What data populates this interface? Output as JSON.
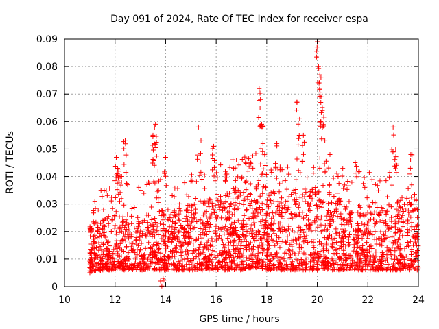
{
  "chart_data": {
    "type": "scatter",
    "title": "Day 091 of 2024, Rate Of TEC Index for receiver espa",
    "xlabel": "GPS time / hours",
    "ylabel": "ROTI / TECUs",
    "xlim": [
      10,
      24
    ],
    "ylim": [
      0,
      0.09
    ],
    "xticks": [
      10,
      12,
      14,
      16,
      18,
      20,
      22,
      24
    ],
    "xtick_labels": [
      "10",
      "12",
      "14",
      "16",
      "18",
      "20",
      "22",
      "24"
    ],
    "yticks": [
      0,
      0.01,
      0.02,
      0.03,
      0.04,
      0.05,
      0.06,
      0.07,
      0.08,
      0.09
    ],
    "ytick_labels": [
      "0",
      "0.01",
      "0.02",
      "0.03",
      "0.04",
      "0.05",
      "0.06",
      "0.07",
      "0.08",
      "0.09"
    ],
    "grid": true,
    "marker": "+",
    "series_color": "#ff0000",
    "x_data_start": 11.0,
    "x_data_end": 24.0,
    "envelope": {
      "x": [
        11.0,
        11.5,
        12.0,
        12.5,
        13.0,
        13.5,
        14.0,
        14.5,
        15.0,
        15.5,
        16.0,
        16.5,
        17.0,
        17.5,
        18.0,
        18.5,
        19.0,
        19.5,
        20.0,
        20.5,
        21.0,
        21.5,
        22.0,
        22.5,
        23.0,
        23.5,
        24.0
      ],
      "typical_low": [
        0.005,
        0.006,
        0.006,
        0.006,
        0.006,
        0.006,
        0.006,
        0.006,
        0.006,
        0.006,
        0.006,
        0.006,
        0.006,
        0.007,
        0.006,
        0.006,
        0.006,
        0.006,
        0.006,
        0.006,
        0.006,
        0.006,
        0.006,
        0.006,
        0.006,
        0.006,
        0.006
      ],
      "typical_high": [
        0.022,
        0.025,
        0.027,
        0.026,
        0.025,
        0.028,
        0.028,
        0.028,
        0.03,
        0.032,
        0.033,
        0.034,
        0.036,
        0.038,
        0.036,
        0.035,
        0.036,
        0.036,
        0.035,
        0.034,
        0.032,
        0.03,
        0.03,
        0.029,
        0.031,
        0.032,
        0.034
      ]
    },
    "spikes": [
      {
        "x": 11.2,
        "y": 0.031
      },
      {
        "x": 12.05,
        "y": 0.047
      },
      {
        "x": 12.1,
        "y": 0.043
      },
      {
        "x": 12.2,
        "y": 0.04
      },
      {
        "x": 12.4,
        "y": 0.053
      },
      {
        "x": 13.5,
        "y": 0.055
      },
      {
        "x": 13.6,
        "y": 0.059
      },
      {
        "x": 13.55,
        "y": 0.052
      },
      {
        "x": 13.7,
        "y": 0.042
      },
      {
        "x": 14.0,
        "y": 0.047
      },
      {
        "x": 15.3,
        "y": 0.058
      },
      {
        "x": 15.4,
        "y": 0.053
      },
      {
        "x": 15.9,
        "y": 0.051
      },
      {
        "x": 16.8,
        "y": 0.046
      },
      {
        "x": 17.7,
        "y": 0.072
      },
      {
        "x": 17.75,
        "y": 0.068
      },
      {
        "x": 17.8,
        "y": 0.059
      },
      {
        "x": 17.85,
        "y": 0.052
      },
      {
        "x": 18.4,
        "y": 0.052
      },
      {
        "x": 19.2,
        "y": 0.067
      },
      {
        "x": 19.3,
        "y": 0.061
      },
      {
        "x": 19.45,
        "y": 0.055
      },
      {
        "x": 20.0,
        "y": 0.089
      },
      {
        "x": 20.05,
        "y": 0.08
      },
      {
        "x": 20.1,
        "y": 0.077
      },
      {
        "x": 20.15,
        "y": 0.069
      },
      {
        "x": 20.2,
        "y": 0.064
      },
      {
        "x": 20.3,
        "y": 0.053
      },
      {
        "x": 20.5,
        "y": 0.048
      },
      {
        "x": 21.5,
        "y": 0.045
      },
      {
        "x": 23.0,
        "y": 0.058
      },
      {
        "x": 23.1,
        "y": 0.05
      },
      {
        "x": 23.7,
        "y": 0.048
      },
      {
        "x": 13.8,
        "y": 0.002
      },
      {
        "x": 13.9,
        "y": 0.003
      }
    ]
  }
}
